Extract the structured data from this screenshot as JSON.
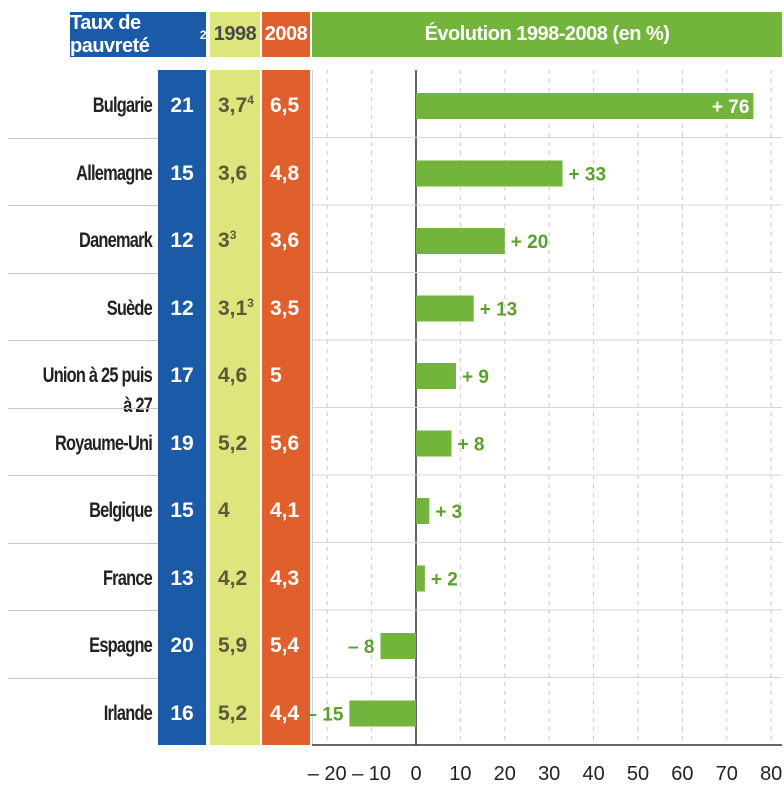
{
  "headers": {
    "taux": "Taux de pauvreté",
    "taux_sup": "2",
    "y1998": "1998",
    "y2008": "2008",
    "evolution": "Évolution 1998-2008 (en %)"
  },
  "colors": {
    "taux": "#1a5aa6",
    "y1998": "#dde57c",
    "y2008": "#e0602d",
    "bar": "#73b53c"
  },
  "rows": [
    {
      "country": "Bulgarie",
      "taux": "21",
      "v1998": "3,7",
      "v1998_sup": "4",
      "v2008": "6,5",
      "evolution_label": "+ 76"
    },
    {
      "country": "Allemagne",
      "taux": "15",
      "v1998": "3,6",
      "v1998_sup": "",
      "v2008": "4,8",
      "evolution_label": "+ 33"
    },
    {
      "country": "Danemark",
      "taux": "12",
      "v1998": "3",
      "v1998_sup": "3",
      "v2008": "3,6",
      "evolution_label": "+ 20"
    },
    {
      "country": "Suède",
      "taux": "12",
      "v1998": "3,1",
      "v1998_sup": "3",
      "v2008": "3,5",
      "evolution_label": "+ 13"
    },
    {
      "country": "Union à 25 puis à 27",
      "taux": "17",
      "v1998": "4,6",
      "v1998_sup": "",
      "v2008": "5",
      "evolution_label": "+ 9"
    },
    {
      "country": "Royaume-Uni",
      "taux": "19",
      "v1998": "5,2",
      "v1998_sup": "",
      "v2008": "5,6",
      "evolution_label": "+ 8"
    },
    {
      "country": "Belgique",
      "taux": "15",
      "v1998": "4",
      "v1998_sup": "",
      "v2008": "4,1",
      "evolution_label": "+ 3"
    },
    {
      "country": "France",
      "taux": "13",
      "v1998": "4,2",
      "v1998_sup": "",
      "v2008": "4,3",
      "evolution_label": "+ 2"
    },
    {
      "country": "Espagne",
      "taux": "20",
      "v1998": "5,9",
      "v1998_sup": "",
      "v2008": "5,4",
      "evolution_label": "– 8"
    },
    {
      "country": "Irlande",
      "taux": "16",
      "v1998": "5,2",
      "v1998_sup": "",
      "v2008": "4,4",
      "evolution_label": "– 15"
    }
  ],
  "chart_data": {
    "type": "bar",
    "orientation": "horizontal",
    "title": "Évolution 1998-2008 (en %)",
    "categories": [
      "Bulgarie",
      "Allemagne",
      "Danemark",
      "Suède",
      "Union à 25 puis à 27",
      "Royaume-Uni",
      "Belgique",
      "France",
      "Espagne",
      "Irlande"
    ],
    "values": [
      76,
      33,
      20,
      13,
      9,
      8,
      3,
      2,
      -8,
      -15
    ],
    "xlim": [
      -23,
      80
    ],
    "xticks": [
      -20,
      -10,
      0,
      10,
      20,
      30,
      40,
      50,
      60,
      70,
      80
    ],
    "xtick_labels": [
      "– 20",
      "– 10",
      "0",
      "10",
      "20",
      "30",
      "40",
      "50",
      "60",
      "70",
      "80"
    ],
    "grid": true
  }
}
